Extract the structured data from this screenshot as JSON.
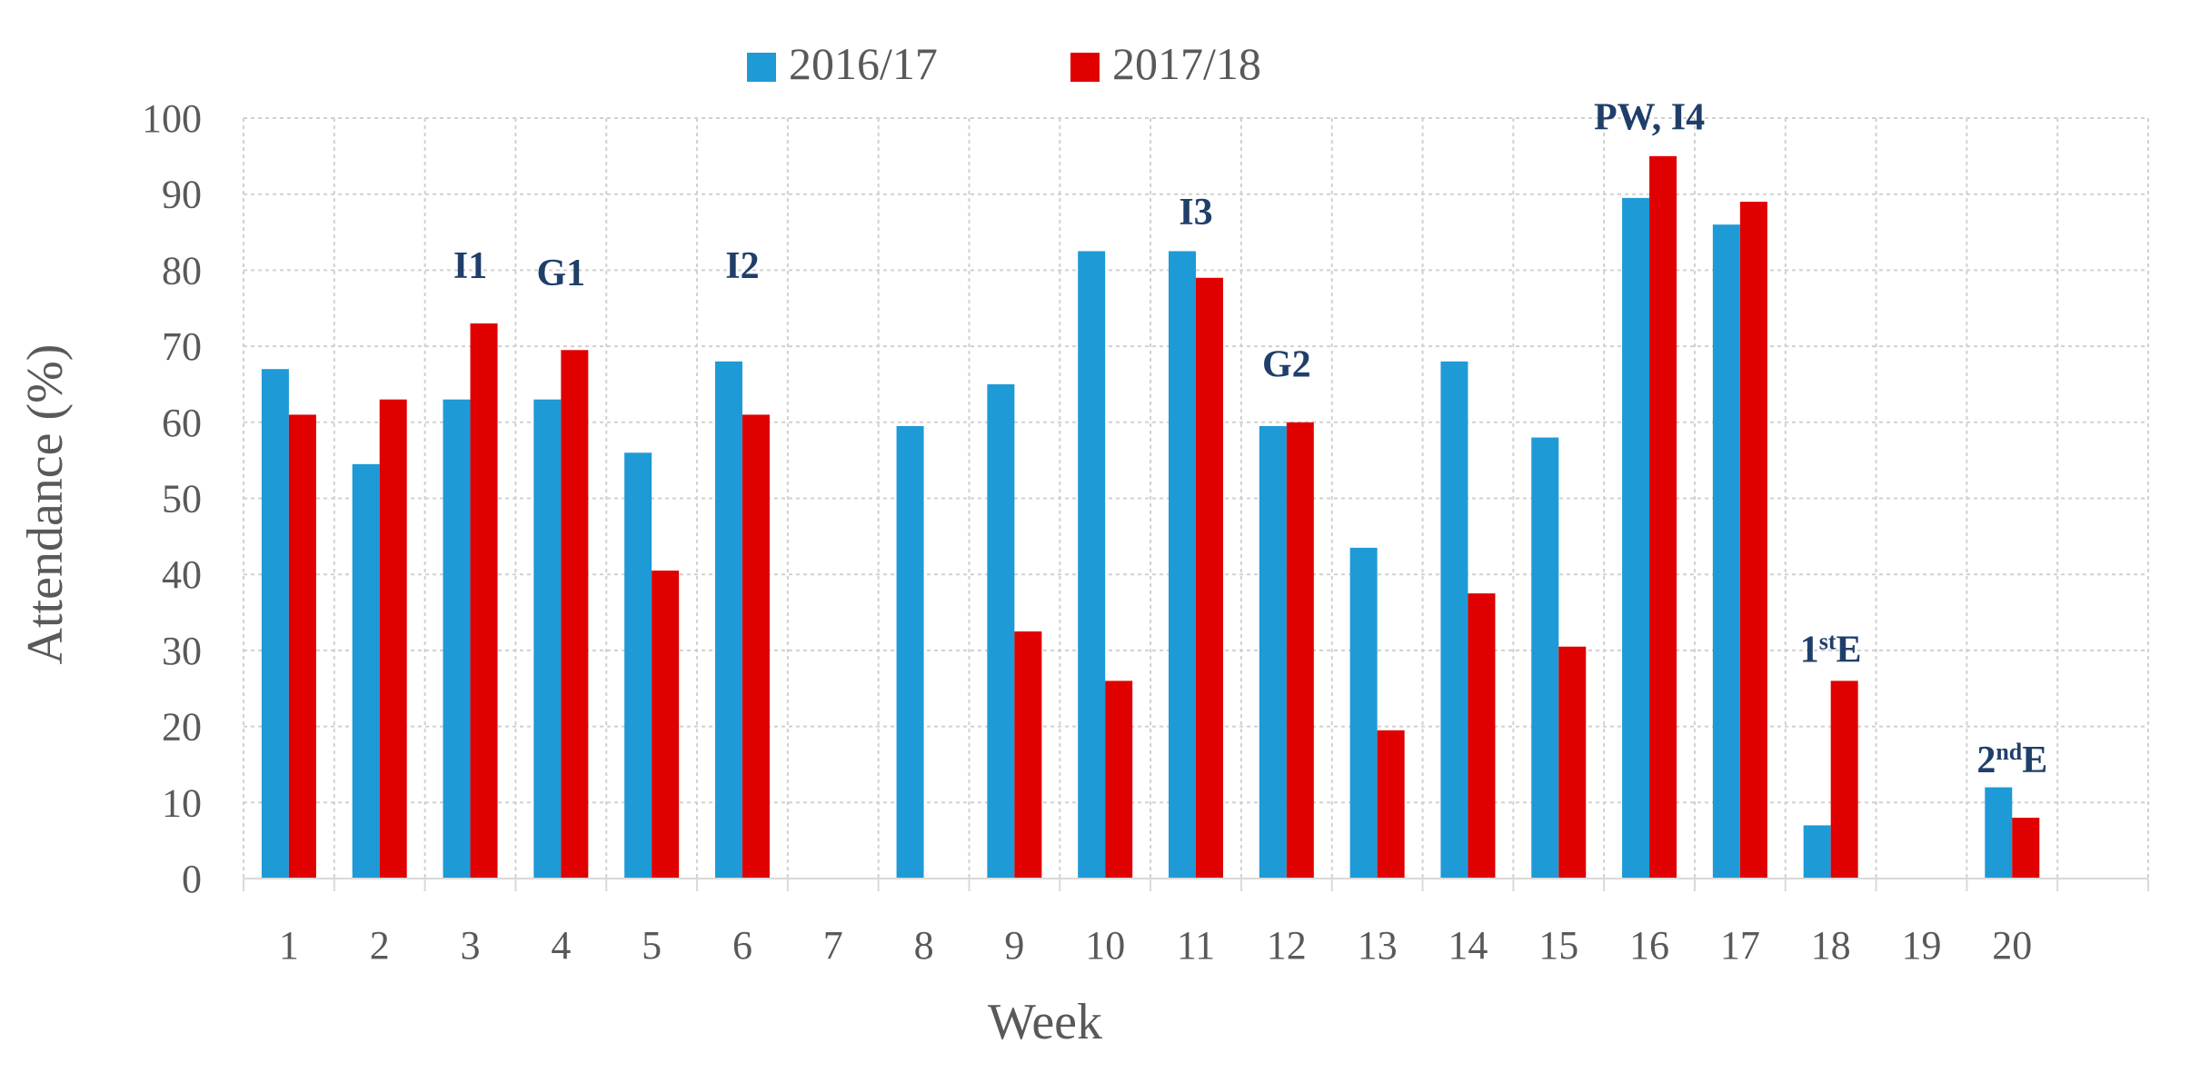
{
  "chart_data": {
    "type": "bar",
    "title": "",
    "xlabel": "Week",
    "ylabel": "Attendance (%)",
    "ylim": [
      0,
      100
    ],
    "ytick_step": 10,
    "grid": true,
    "legend_position": "top-center",
    "categories": [
      "1",
      "2",
      "3",
      "4",
      "5",
      "6",
      "7",
      "8",
      "9",
      "10",
      "11",
      "12",
      "13",
      "14",
      "15",
      "16",
      "17",
      "18",
      "19",
      "20"
    ],
    "series": [
      {
        "name": "2016/17",
        "color": "#1e9ad6",
        "values": [
          67,
          54.5,
          63,
          63,
          56,
          68,
          null,
          59.5,
          65,
          82.5,
          82.5,
          59.5,
          43.5,
          68,
          58,
          89.5,
          86,
          7,
          null,
          12
        ]
      },
      {
        "name": "2017/18",
        "color": "#e00000",
        "values": [
          61,
          63,
          73,
          69.5,
          40.5,
          61,
          null,
          null,
          32.5,
          26,
          79,
          60,
          19.5,
          37.5,
          30.5,
          95,
          89,
          26,
          null,
          8
        ]
      }
    ],
    "annotations": [
      {
        "category": "3",
        "text": "I1",
        "sup": "",
        "after": "",
        "y": 79
      },
      {
        "category": "4",
        "text": "G1",
        "sup": "",
        "after": "",
        "y": 78
      },
      {
        "category": "6",
        "text": "I2",
        "sup": "",
        "after": "",
        "y": 79
      },
      {
        "category": "11",
        "text": "I3",
        "sup": "",
        "after": "",
        "y": 86
      },
      {
        "category": "12",
        "text": "G2",
        "sup": "",
        "after": "",
        "y": 66
      },
      {
        "category": "16",
        "text": "PW, I4",
        "sup": "",
        "after": "",
        "y": 98.5
      },
      {
        "category": "18",
        "text": "1",
        "sup": "st",
        "after": "E",
        "y": 28.5
      },
      {
        "category": "20",
        "text": "2",
        "sup": "nd",
        "after": "E",
        "y": 14
      }
    ]
  }
}
